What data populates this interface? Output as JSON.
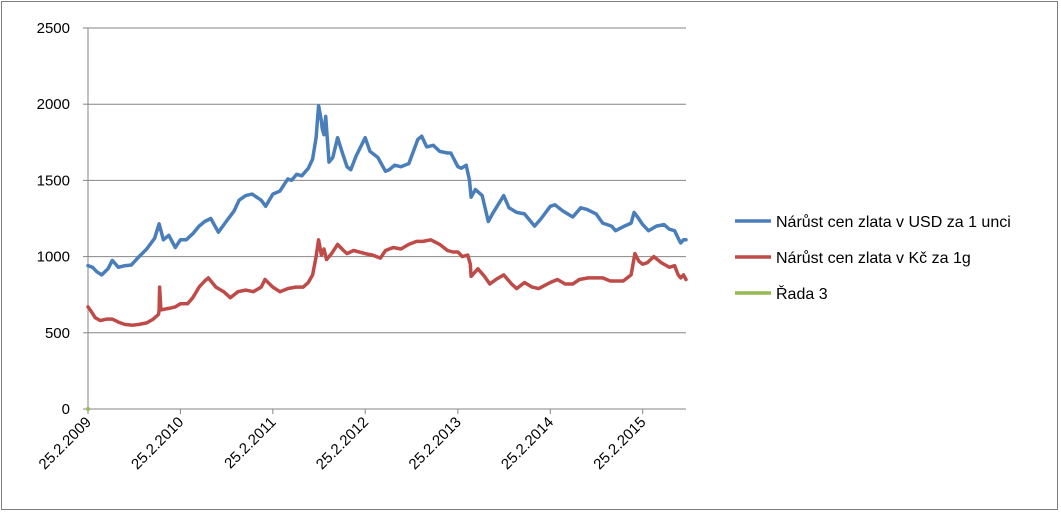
{
  "chart_data": {
    "type": "line",
    "title": "",
    "xlabel": "",
    "ylabel": "",
    "ylim": [
      0,
      2500
    ],
    "yticks": [
      0,
      500,
      1000,
      1500,
      2000,
      2500
    ],
    "ytick_labels": [
      "0",
      "500",
      "1000",
      "1500",
      "2000",
      "2500"
    ],
    "xlim": [
      "2009-02-25",
      "2015-08-15"
    ],
    "xticks": [
      "2009-02-25",
      "2010-02-25",
      "2011-02-25",
      "2012-02-25",
      "2013-02-25",
      "2014-02-25",
      "2015-02-25"
    ],
    "xtick_labels": [
      "25.2.2009",
      "25.2.2010",
      "25.2.2011",
      "25.2.2012",
      "25.2.2013",
      "25.2.2014",
      "25.2.2015"
    ],
    "grid": "horizontal",
    "legend_position": "right",
    "series": [
      {
        "name": "Nárůst cen zlata v USD za 1 unci",
        "color": "#4a7ebb",
        "points": [
          [
            "2009-02-25",
            940
          ],
          [
            "2009-03-15",
            930
          ],
          [
            "2009-04-01",
            900
          ],
          [
            "2009-04-20",
            880
          ],
          [
            "2009-05-15",
            920
          ],
          [
            "2009-06-01",
            975
          ],
          [
            "2009-06-25",
            930
          ],
          [
            "2009-07-20",
            940
          ],
          [
            "2009-08-15",
            945
          ],
          [
            "2009-09-15",
            1000
          ],
          [
            "2009-10-15",
            1050
          ],
          [
            "2009-11-15",
            1120
          ],
          [
            "2009-12-03",
            1215
          ],
          [
            "2009-12-20",
            1110
          ],
          [
            "2010-01-10",
            1140
          ],
          [
            "2010-02-05",
            1060
          ],
          [
            "2010-02-25",
            1110
          ],
          [
            "2010-03-20",
            1110
          ],
          [
            "2010-04-15",
            1150
          ],
          [
            "2010-05-10",
            1200
          ],
          [
            "2010-06-01",
            1230
          ],
          [
            "2010-06-25",
            1250
          ],
          [
            "2010-07-25",
            1160
          ],
          [
            "2010-08-25",
            1230
          ],
          [
            "2010-09-25",
            1300
          ],
          [
            "2010-10-15",
            1370
          ],
          [
            "2010-11-10",
            1400
          ],
          [
            "2010-12-05",
            1410
          ],
          [
            "2011-01-10",
            1370
          ],
          [
            "2011-01-28",
            1330
          ],
          [
            "2011-02-25",
            1410
          ],
          [
            "2011-03-25",
            1430
          ],
          [
            "2011-04-25",
            1510
          ],
          [
            "2011-05-10",
            1500
          ],
          [
            "2011-05-30",
            1540
          ],
          [
            "2011-06-20",
            1530
          ],
          [
            "2011-07-15",
            1580
          ],
          [
            "2011-08-01",
            1640
          ],
          [
            "2011-08-15",
            1780
          ],
          [
            "2011-08-25",
            1990
          ],
          [
            "2011-09-05",
            1890
          ],
          [
            "2011-09-08",
            1840
          ],
          [
            "2011-09-15",
            1800
          ],
          [
            "2011-09-22",
            1920
          ],
          [
            "2011-10-05",
            1620
          ],
          [
            "2011-10-20",
            1650
          ],
          [
            "2011-11-08",
            1780
          ],
          [
            "2011-11-25",
            1690
          ],
          [
            "2011-12-15",
            1590
          ],
          [
            "2011-12-30",
            1570
          ],
          [
            "2012-01-20",
            1660
          ],
          [
            "2012-02-25",
            1780
          ],
          [
            "2012-03-15",
            1690
          ],
          [
            "2012-04-15",
            1650
          ],
          [
            "2012-05-15",
            1560
          ],
          [
            "2012-05-30",
            1570
          ],
          [
            "2012-06-20",
            1600
          ],
          [
            "2012-07-15",
            1590
          ],
          [
            "2012-08-15",
            1610
          ],
          [
            "2012-09-20",
            1770
          ],
          [
            "2012-10-05",
            1790
          ],
          [
            "2012-10-25",
            1720
          ],
          [
            "2012-11-20",
            1730
          ],
          [
            "2012-12-15",
            1690
          ],
          [
            "2013-01-15",
            1680
          ],
          [
            "2013-01-28",
            1680
          ],
          [
            "2013-02-25",
            1590
          ],
          [
            "2013-03-10",
            1580
          ],
          [
            "2013-03-30",
            1600
          ],
          [
            "2013-04-12",
            1500
          ],
          [
            "2013-04-18",
            1390
          ],
          [
            "2013-05-05",
            1440
          ],
          [
            "2013-06-01",
            1400
          ],
          [
            "2013-06-25",
            1230
          ],
          [
            "2013-07-15",
            1290
          ],
          [
            "2013-08-25",
            1400
          ],
          [
            "2013-09-15",
            1320
          ],
          [
            "2013-10-15",
            1290
          ],
          [
            "2013-11-15",
            1280
          ],
          [
            "2013-12-25",
            1200
          ],
          [
            "2014-01-20",
            1250
          ],
          [
            "2014-02-25",
            1330
          ],
          [
            "2014-03-15",
            1340
          ],
          [
            "2014-04-15",
            1300
          ],
          [
            "2014-05-25",
            1260
          ],
          [
            "2014-06-25",
            1320
          ],
          [
            "2014-07-20",
            1310
          ],
          [
            "2014-08-25",
            1280
          ],
          [
            "2014-09-20",
            1220
          ],
          [
            "2014-10-25",
            1200
          ],
          [
            "2014-11-10",
            1170
          ],
          [
            "2014-12-15",
            1200
          ],
          [
            "2015-01-10",
            1220
          ],
          [
            "2015-01-22",
            1290
          ],
          [
            "2015-02-05",
            1260
          ],
          [
            "2015-02-25",
            1210
          ],
          [
            "2015-03-20",
            1170
          ],
          [
            "2015-04-20",
            1200
          ],
          [
            "2015-05-20",
            1210
          ],
          [
            "2015-06-10",
            1180
          ],
          [
            "2015-07-01",
            1170
          ],
          [
            "2015-07-15",
            1120
          ],
          [
            "2015-07-25",
            1090
          ],
          [
            "2015-08-05",
            1110
          ],
          [
            "2015-08-15",
            1110
          ]
        ]
      },
      {
        "name": "Nárůst cen zlata v Kč za 1g",
        "color": "#be4b48",
        "points": [
          [
            "2009-02-25",
            670
          ],
          [
            "2009-03-10",
            640
          ],
          [
            "2009-03-25",
            600
          ],
          [
            "2009-04-15",
            580
          ],
          [
            "2009-05-10",
            590
          ],
          [
            "2009-06-01",
            590
          ],
          [
            "2009-06-25",
            570
          ],
          [
            "2009-07-20",
            555
          ],
          [
            "2009-08-20",
            550
          ],
          [
            "2009-09-15",
            555
          ],
          [
            "2009-10-15",
            565
          ],
          [
            "2009-11-10",
            590
          ],
          [
            "2009-11-30",
            620
          ],
          [
            "2009-12-03",
            645
          ],
          [
            "2009-12-05",
            800
          ],
          [
            "2009-12-10",
            650
          ],
          [
            "2010-01-10",
            660
          ],
          [
            "2010-02-05",
            670
          ],
          [
            "2010-02-25",
            690
          ],
          [
            "2010-03-25",
            690
          ],
          [
            "2010-04-15",
            730
          ],
          [
            "2010-05-10",
            800
          ],
          [
            "2010-06-01",
            840
          ],
          [
            "2010-06-15",
            860
          ],
          [
            "2010-07-15",
            800
          ],
          [
            "2010-08-15",
            770
          ],
          [
            "2010-09-10",
            730
          ],
          [
            "2010-10-10",
            770
          ],
          [
            "2010-11-10",
            780
          ],
          [
            "2010-12-10",
            770
          ],
          [
            "2011-01-10",
            800
          ],
          [
            "2011-01-25",
            850
          ],
          [
            "2011-02-25",
            800
          ],
          [
            "2011-03-25",
            770
          ],
          [
            "2011-04-25",
            790
          ],
          [
            "2011-05-25",
            800
          ],
          [
            "2011-06-25",
            800
          ],
          [
            "2011-07-15",
            830
          ],
          [
            "2011-08-01",
            880
          ],
          [
            "2011-08-15",
            1000
          ],
          [
            "2011-08-25",
            1110
          ],
          [
            "2011-09-05",
            1010
          ],
          [
            "2011-09-15",
            1050
          ],
          [
            "2011-09-25",
            980
          ],
          [
            "2011-10-15",
            1020
          ],
          [
            "2011-11-08",
            1080
          ],
          [
            "2011-12-01",
            1040
          ],
          [
            "2011-12-15",
            1020
          ],
          [
            "2012-01-10",
            1040
          ],
          [
            "2012-02-25",
            1020
          ],
          [
            "2012-03-25",
            1010
          ],
          [
            "2012-04-25",
            990
          ],
          [
            "2012-05-15",
            1040
          ],
          [
            "2012-06-15",
            1060
          ],
          [
            "2012-07-15",
            1050
          ],
          [
            "2012-08-15",
            1080
          ],
          [
            "2012-09-15",
            1100
          ],
          [
            "2012-10-10",
            1100
          ],
          [
            "2012-11-10",
            1110
          ],
          [
            "2012-12-15",
            1080
          ],
          [
            "2013-01-15",
            1040
          ],
          [
            "2013-02-05",
            1030
          ],
          [
            "2013-02-25",
            1030
          ],
          [
            "2013-03-15",
            1000
          ],
          [
            "2013-04-05",
            1010
          ],
          [
            "2013-04-15",
            950
          ],
          [
            "2013-04-18",
            870
          ],
          [
            "2013-05-15",
            920
          ],
          [
            "2013-06-10",
            870
          ],
          [
            "2013-07-01",
            820
          ],
          [
            "2013-07-25",
            850
          ],
          [
            "2013-08-25",
            880
          ],
          [
            "2013-09-25",
            820
          ],
          [
            "2013-10-15",
            790
          ],
          [
            "2013-11-15",
            830
          ],
          [
            "2013-12-15",
            800
          ],
          [
            "2014-01-10",
            790
          ],
          [
            "2014-02-25",
            830
          ],
          [
            "2014-03-25",
            850
          ],
          [
            "2014-04-25",
            820
          ],
          [
            "2014-05-25",
            820
          ],
          [
            "2014-06-20",
            850
          ],
          [
            "2014-07-25",
            860
          ],
          [
            "2014-08-20",
            860
          ],
          [
            "2014-09-20",
            860
          ],
          [
            "2014-10-20",
            840
          ],
          [
            "2014-11-20",
            840
          ],
          [
            "2014-12-10",
            840
          ],
          [
            "2015-01-10",
            880
          ],
          [
            "2015-01-25",
            1020
          ],
          [
            "2015-02-10",
            970
          ],
          [
            "2015-02-25",
            950
          ],
          [
            "2015-03-15",
            960
          ],
          [
            "2015-04-10",
            1000
          ],
          [
            "2015-05-10",
            960
          ],
          [
            "2015-06-10",
            930
          ],
          [
            "2015-07-01",
            940
          ],
          [
            "2015-07-15",
            880
          ],
          [
            "2015-07-25",
            860
          ],
          [
            "2015-08-05",
            880
          ],
          [
            "2015-08-15",
            850
          ]
        ]
      },
      {
        "name": "Řada 3",
        "color": "#98b954",
        "points": [
          [
            "2009-02-25",
            0
          ]
        ]
      }
    ]
  }
}
